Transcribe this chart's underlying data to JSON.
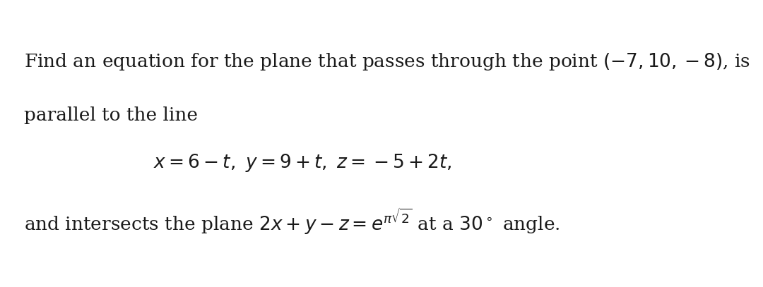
{
  "background_color": "#ffffff",
  "figsize": [
    10.8,
    4.07
  ],
  "dpi": 100,
  "line1": "Find an equation for the plane that passes through the point $(-7, 10, -8)$, is",
  "line2": "parallel to the line",
  "line3": "$x = 6 - t, \\ y = 9 + t, \\ z = -5 + 2t,$",
  "line4_prefix": "and intersects the plane $2x + y - z = e^{\\pi\\sqrt{2}}$",
  "line4_suffix": " at a $30^\\circ$ angle.",
  "text_color": "#1a1a1a",
  "font_size": 19,
  "math_font_size": 19
}
